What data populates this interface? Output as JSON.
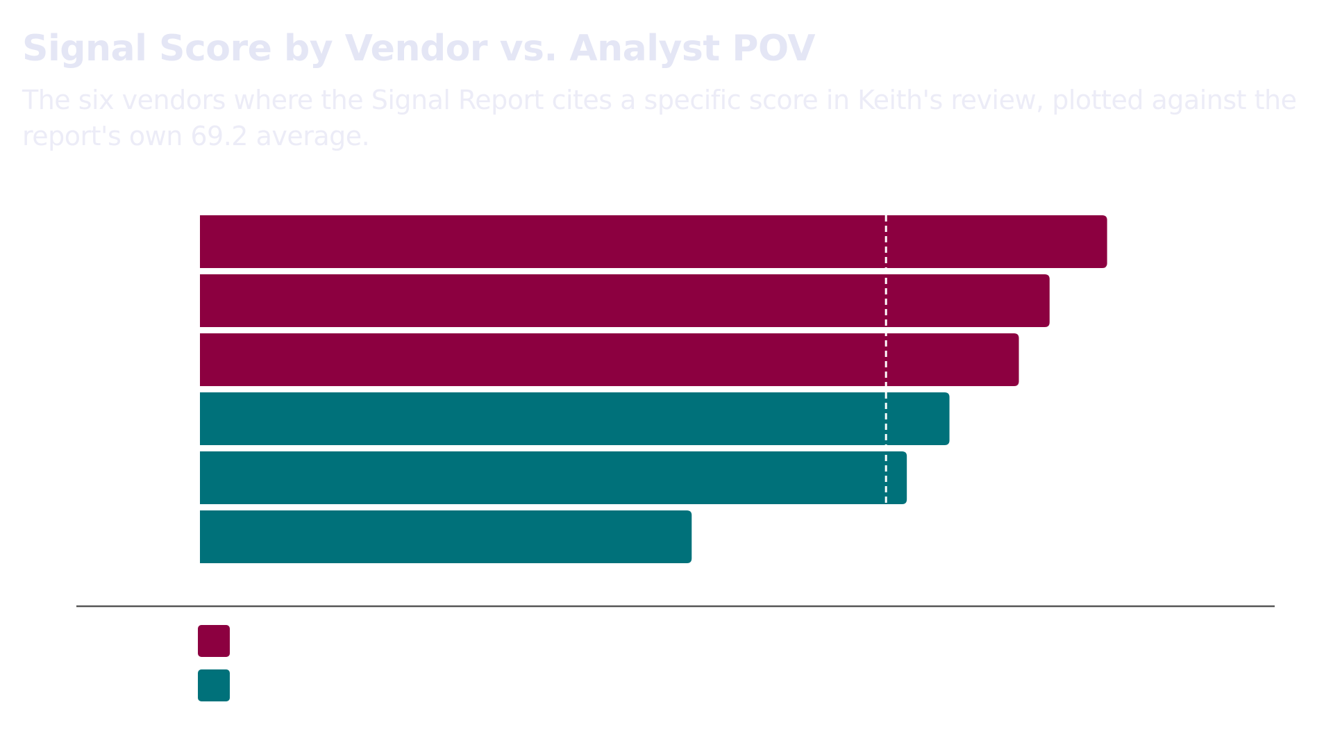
{
  "title": "Signal Score by Vendor vs. Analyst POV",
  "subtitle": "The six vendors where the Signal Report cites a specific score in Keith's review, plotted against the report's own 69.2 average.",
  "colors": {
    "title": "#e4e6f5",
    "subtitle": "#ececf7",
    "group_a": "#8c0040",
    "group_b": "#00717a",
    "reference_line": "#ffffff",
    "baseline": "#555555"
  },
  "chart_data": {
    "type": "bar",
    "orientation": "horizontal",
    "title": "Signal Score by Vendor vs. Analyst POV",
    "subtitle": "The six vendors where the Signal Report cites a specific score in Keith's review, plotted against the report's own 69.2 average.",
    "xlim": [
      0,
      100
    ],
    "values": [
      91.5,
      85.7,
      82.6,
      75.6,
      71.3,
      49.6
    ],
    "groups": [
      "a",
      "a",
      "a",
      "b",
      "b",
      "b"
    ],
    "reference_line": {
      "value": 69.2,
      "style": "dashed"
    },
    "legend": {
      "placement": "bottom-left",
      "entries": [
        {
          "group": "a",
          "color": "#8c0040",
          "label": ""
        },
        {
          "group": "b",
          "color": "#00717a",
          "label": ""
        }
      ]
    },
    "grid": false
  }
}
